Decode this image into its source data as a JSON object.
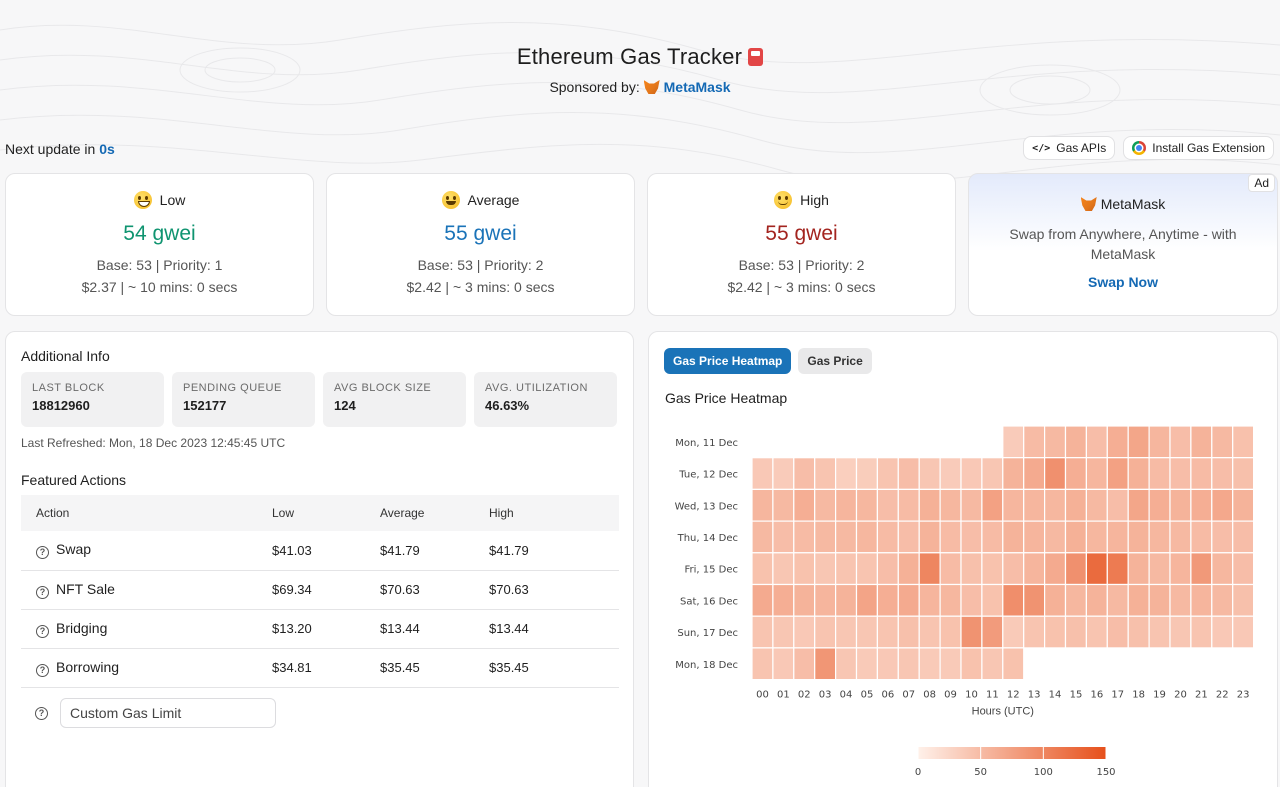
{
  "header": {
    "title": "Ethereum Gas Tracker",
    "sponsored_label": "Sponsored by:",
    "sponsor_name": "MetaMask"
  },
  "next_update": {
    "label": "Next update in",
    "value": "0s"
  },
  "top_buttons": {
    "gas_apis": "Gas APIs",
    "install_extension": "Install Gas Extension"
  },
  "gas_cards": [
    {
      "label": "Low",
      "gwei": "54 gwei",
      "base_priority": "Base: 53 | Priority: 1",
      "cost_time": "$2.37 | ~ 10 mins: 0 secs",
      "icon": "grinning-face-icon",
      "color": "#0f9470"
    },
    {
      "label": "Average",
      "gwei": "55 gwei",
      "base_priority": "Base: 53 | Priority: 2",
      "cost_time": "$2.42 | ~ 3 mins: 0 secs",
      "icon": "smiling-face-icon",
      "color": "#1a73b8"
    },
    {
      "label": "High",
      "gwei": "55 gwei",
      "base_priority": "Base: 53 | Priority: 2",
      "cost_time": "$2.42 | ~ 3 mins: 0 secs",
      "icon": "slightly-smiling-face-icon",
      "color": "#a3241f"
    }
  ],
  "ad": {
    "tag": "Ad",
    "title": "MetaMask",
    "description": "Swap from Anywhere, Anytime - with MetaMask",
    "cta": "Swap Now"
  },
  "additional_info": {
    "title": "Additional Info",
    "stats": [
      {
        "key": "LAST BLOCK",
        "value": "18812960"
      },
      {
        "key": "PENDING QUEUE",
        "value": "152177"
      },
      {
        "key": "AVG BLOCK SIZE",
        "value": "124"
      },
      {
        "key": "AVG. UTILIZATION",
        "value": "46.63%"
      }
    ],
    "last_refreshed": "Last Refreshed: Mon, 18 Dec 2023 12:45:45 UTC"
  },
  "featured_actions": {
    "title": "Featured Actions",
    "columns": [
      "Action",
      "Low",
      "Average",
      "High"
    ],
    "rows": [
      {
        "action": "Swap",
        "low": "$41.03",
        "average": "$41.79",
        "high": "$41.79"
      },
      {
        "action": "NFT Sale",
        "low": "$69.34",
        "average": "$70.63",
        "high": "$70.63"
      },
      {
        "action": "Bridging",
        "low": "$13.20",
        "average": "$13.44",
        "high": "$13.44"
      },
      {
        "action": "Borrowing",
        "low": "$34.81",
        "average": "$35.45",
        "high": "$35.45"
      }
    ],
    "custom_placeholder": "Custom Gas Limit"
  },
  "heatmap_panel": {
    "tabs": [
      "Gas Price Heatmap",
      "Gas Price"
    ],
    "active_tab": "Gas Price Heatmap",
    "title": "Gas Price Heatmap"
  },
  "chart_data": {
    "type": "heatmap",
    "title": "Gas Price Heatmap",
    "xlabel": "Hours (UTC)",
    "x": [
      "00",
      "01",
      "02",
      "03",
      "04",
      "05",
      "06",
      "07",
      "08",
      "09",
      "10",
      "11",
      "12",
      "13",
      "14",
      "15",
      "16",
      "17",
      "18",
      "19",
      "20",
      "21",
      "22",
      "23"
    ],
    "y": [
      "Mon, 11 Dec",
      "Tue, 12 Dec",
      "Wed, 13 Dec",
      "Thu, 14 Dec",
      "Fri, 15 Dec",
      "Sat, 16 Dec",
      "Sun, 17 Dec",
      "Mon, 18 Dec"
    ],
    "color_scale": {
      "min": 0,
      "max": 150,
      "ticks": [
        0,
        50,
        100,
        150
      ],
      "low_color": "#fff1ea",
      "high_color": "#e6501b"
    },
    "values": [
      [
        null,
        null,
        null,
        null,
        null,
        null,
        null,
        null,
        null,
        null,
        null,
        null,
        35,
        50,
        52,
        58,
        48,
        62,
        70,
        55,
        48,
        58,
        52,
        45
      ],
      [
        38,
        35,
        48,
        42,
        32,
        34,
        42,
        48,
        40,
        35,
        38,
        40,
        58,
        66,
        90,
        62,
        55,
        75,
        60,
        50,
        48,
        50,
        48,
        46
      ],
      [
        55,
        52,
        62,
        52,
        56,
        54,
        48,
        50,
        60,
        54,
        52,
        75,
        55,
        55,
        54,
        60,
        52,
        48,
        70,
        62,
        58,
        62,
        68,
        58
      ],
      [
        52,
        48,
        50,
        52,
        52,
        54,
        50,
        48,
        58,
        50,
        48,
        50,
        58,
        56,
        52,
        60,
        54,
        56,
        58,
        54,
        52,
        50,
        48,
        48
      ],
      [
        44,
        40,
        44,
        40,
        42,
        42,
        48,
        60,
        100,
        50,
        46,
        44,
        48,
        56,
        66,
        90,
        125,
        110,
        58,
        52,
        56,
        82,
        54,
        48
      ],
      [
        66,
        62,
        58,
        56,
        58,
        72,
        62,
        66,
        56,
        54,
        48,
        44,
        92,
        88,
        60,
        54,
        58,
        52,
        60,
        58,
        52,
        56,
        52,
        46
      ],
      [
        42,
        40,
        38,
        42,
        40,
        40,
        42,
        46,
        42,
        44,
        88,
        80,
        36,
        42,
        44,
        46,
        42,
        48,
        46,
        42,
        40,
        42,
        38,
        38
      ],
      [
        42,
        38,
        48,
        85,
        40,
        36,
        38,
        40,
        36,
        36,
        44,
        40,
        44,
        null,
        null,
        null,
        null,
        null,
        null,
        null,
        null,
        null,
        null,
        null
      ]
    ]
  }
}
